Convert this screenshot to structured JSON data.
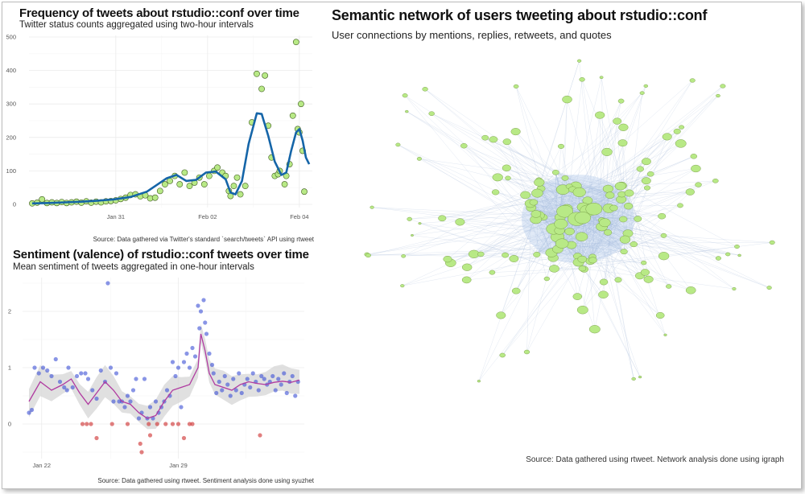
{
  "freq": {
    "title": "Frequency of tweets about rstudio::conf over time",
    "subtitle": "Twitter status counts aggregated using two-hour intervals",
    "caption": "Source: Data gathered via Twitter's standard `search/tweets` API using rtweet"
  },
  "sentiment": {
    "title": "Sentiment (valence) of rstudio::conf tweets over time",
    "subtitle": "Mean sentiment of tweets aggregated in one-hour intervals",
    "caption": "Source: Data gathered using rtweet. Sentiment analysis done using syuzhet"
  },
  "network": {
    "title": "Semantic network of users tweeting about rstudio::conf",
    "subtitle": "User connections by mentions, replies, retweets, and quotes",
    "caption": "Source: Data gathered using rtweet. Network analysis done using igraph"
  },
  "colors": {
    "freq_points": "#b8e986",
    "freq_line": "#1565a8",
    "sent_positive": "#3a4fd6",
    "sent_negative": "#d13a3a",
    "sent_line": "#b03aa0",
    "band": "#d6d6d6",
    "network_nodes": "#b8e986",
    "network_edges": "#9fb4d6"
  },
  "chart_data": [
    {
      "type": "scatter",
      "title": "Frequency of tweets about rstudio::conf over time",
      "subtitle": "Twitter status counts aggregated using two-hour intervals",
      "xlabel": "",
      "ylabel": "",
      "x_ticks": [
        "Jan 31",
        "Feb 02",
        "Feb 04"
      ],
      "y_ticks": [
        0,
        100,
        200,
        300,
        400,
        500
      ],
      "xlim": [
        0,
        8.3
      ],
      "ylim": [
        0,
        500
      ],
      "grid": true,
      "points": [
        [
          0.0,
          3
        ],
        [
          0.15,
          5
        ],
        [
          0.3,
          15
        ],
        [
          0.45,
          4
        ],
        [
          0.6,
          6
        ],
        [
          0.75,
          4
        ],
        [
          0.9,
          7
        ],
        [
          1.05,
          4
        ],
        [
          1.2,
          6
        ],
        [
          1.35,
          8
        ],
        [
          1.5,
          5
        ],
        [
          1.65,
          9
        ],
        [
          1.8,
          5
        ],
        [
          1.95,
          8
        ],
        [
          2.1,
          6
        ],
        [
          2.25,
          9
        ],
        [
          2.4,
          10
        ],
        [
          2.55,
          12
        ],
        [
          2.7,
          16
        ],
        [
          2.85,
          20
        ],
        [
          3.0,
          28
        ],
        [
          3.15,
          30
        ],
        [
          3.3,
          24
        ],
        [
          3.45,
          27
        ],
        [
          3.6,
          18
        ],
        [
          3.75,
          20
        ],
        [
          3.9,
          40
        ],
        [
          4.05,
          60
        ],
        [
          4.2,
          70
        ],
        [
          4.35,
          85
        ],
        [
          4.5,
          60
        ],
        [
          4.65,
          95
        ],
        [
          4.8,
          55
        ],
        [
          4.95,
          65
        ],
        [
          5.1,
          80
        ],
        [
          5.25,
          60
        ],
        [
          5.4,
          85
        ],
        [
          5.55,
          100
        ],
        [
          5.65,
          110
        ],
        [
          5.8,
          95
        ],
        [
          5.9,
          85
        ],
        [
          6.0,
          40
        ],
        [
          6.05,
          25
        ],
        [
          6.15,
          55
        ],
        [
          6.25,
          80
        ],
        [
          6.35,
          30
        ],
        [
          6.5,
          55
        ],
        [
          6.7,
          245
        ],
        [
          6.85,
          390
        ],
        [
          7.0,
          345
        ],
        [
          7.1,
          385
        ],
        [
          7.2,
          235
        ],
        [
          7.3,
          140
        ],
        [
          7.4,
          85
        ],
        [
          7.5,
          90
        ],
        [
          7.55,
          100
        ],
        [
          7.7,
          60
        ],
        [
          7.75,
          85
        ],
        [
          7.85,
          120
        ],
        [
          7.95,
          265
        ],
        [
          8.05,
          485
        ],
        [
          8.1,
          225
        ],
        [
          8.15,
          215
        ],
        [
          8.2,
          300
        ],
        [
          8.25,
          160
        ],
        [
          8.3,
          38
        ]
      ],
      "smooth": [
        [
          0.0,
          3
        ],
        [
          0.5,
          4
        ],
        [
          1.0,
          6
        ],
        [
          1.5,
          8
        ],
        [
          2.0,
          11
        ],
        [
          2.5,
          15
        ],
        [
          3.0,
          22
        ],
        [
          3.5,
          38
        ],
        [
          3.8,
          58
        ],
        [
          4.1,
          78
        ],
        [
          4.4,
          88
        ],
        [
          4.7,
          70
        ],
        [
          5.0,
          73
        ],
        [
          5.3,
          95
        ],
        [
          5.6,
          98
        ],
        [
          5.9,
          75
        ],
        [
          6.05,
          35
        ],
        [
          6.2,
          30
        ],
        [
          6.4,
          70
        ],
        [
          6.6,
          180
        ],
        [
          6.85,
          272
        ],
        [
          7.0,
          270
        ],
        [
          7.2,
          205
        ],
        [
          7.4,
          128
        ],
        [
          7.6,
          88
        ],
        [
          7.75,
          95
        ],
        [
          7.9,
          160
        ],
        [
          8.05,
          215
        ],
        [
          8.15,
          225
        ],
        [
          8.25,
          190
        ],
        [
          8.35,
          140
        ],
        [
          8.45,
          120
        ]
      ]
    },
    {
      "type": "scatter",
      "title": "Sentiment (valence) of rstudio::conf tweets over time",
      "subtitle": "Mean sentiment of tweets aggregated in one-hour intervals",
      "xlabel": "",
      "ylabel": "",
      "x_ticks": [
        "Jan 22",
        "Jan 29"
      ],
      "y_ticks": [
        0,
        1,
        2
      ],
      "xlim": [
        0,
        9.6
      ],
      "ylim": [
        -0.5,
        2.5
      ],
      "grid": true,
      "points": [
        [
          0.0,
          0.2
        ],
        [
          0.1,
          0.25
        ],
        [
          0.2,
          1.0
        ],
        [
          0.35,
          0.9
        ],
        [
          0.5,
          1.0
        ],
        [
          0.65,
          0.95
        ],
        [
          0.8,
          0.85
        ],
        [
          0.95,
          1.15
        ],
        [
          1.1,
          0.75
        ],
        [
          1.25,
          0.65
        ],
        [
          1.35,
          0.6
        ],
        [
          1.4,
          1.0
        ],
        [
          1.55,
          0.65
        ],
        [
          1.7,
          0.85
        ],
        [
          1.85,
          0.9
        ],
        [
          2.0,
          0.9
        ],
        [
          2.1,
          0.8
        ],
        [
          2.25,
          0.6
        ],
        [
          2.4,
          0.45
        ],
        [
          2.55,
          0.95
        ],
        [
          2.7,
          0.75
        ],
        [
          2.8,
          2.5
        ],
        [
          2.9,
          1.0
        ],
        [
          3.0,
          0.4
        ],
        [
          3.1,
          0.9
        ],
        [
          3.2,
          0.4
        ],
        [
          3.3,
          0.4
        ],
        [
          3.4,
          0.3
        ],
        [
          3.5,
          0.5
        ],
        [
          3.6,
          0.4
        ],
        [
          3.7,
          0.6
        ],
        [
          3.8,
          0.8
        ],
        [
          3.9,
          0.1
        ],
        [
          4.0,
          0.2
        ],
        [
          4.1,
          0.8
        ],
        [
          4.2,
          0.1
        ],
        [
          4.3,
          0.3
        ],
        [
          4.4,
          0.1
        ],
        [
          4.5,
          0.4
        ],
        [
          4.6,
          0.2
        ],
        [
          4.7,
          0.3
        ],
        [
          4.8,
          0.4
        ],
        [
          4.9,
          0.6
        ],
        [
          5.0,
          0.5
        ],
        [
          5.1,
          1.1
        ],
        [
          5.2,
          0.85
        ],
        [
          5.3,
          1.0
        ],
        [
          5.4,
          0.3
        ],
        [
          5.5,
          1.1
        ],
        [
          5.6,
          1.25
        ],
        [
          5.7,
          1.0
        ],
        [
          5.8,
          1.35
        ],
        [
          5.9,
          1.2
        ],
        [
          6.0,
          2.1
        ],
        [
          6.05,
          1.7
        ],
        [
          6.1,
          2.0
        ],
        [
          6.2,
          2.2
        ],
        [
          6.25,
          1.8
        ],
        [
          6.3,
          1.6
        ],
        [
          6.4,
          1.25
        ],
        [
          6.5,
          1.05
        ],
        [
          6.55,
          0.9
        ],
        [
          6.65,
          0.55
        ],
        [
          6.75,
          0.75
        ],
        [
          6.85,
          0.6
        ],
        [
          6.95,
          0.85
        ],
        [
          7.05,
          0.7
        ],
        [
          7.15,
          0.5
        ],
        [
          7.25,
          0.8
        ],
        [
          7.35,
          0.6
        ],
        [
          7.45,
          0.9
        ],
        [
          7.55,
          0.55
        ],
        [
          7.65,
          0.7
        ],
        [
          7.75,
          0.8
        ],
        [
          7.85,
          0.65
        ],
        [
          7.95,
          0.9
        ],
        [
          8.05,
          0.75
        ],
        [
          8.15,
          0.6
        ],
        [
          8.25,
          0.85
        ],
        [
          8.35,
          0.8
        ],
        [
          8.45,
          0.7
        ],
        [
          8.55,
          0.75
        ],
        [
          8.65,
          0.85
        ],
        [
          8.75,
          0.6
        ],
        [
          8.85,
          0.8
        ],
        [
          8.95,
          0.7
        ],
        [
          9.05,
          0.9
        ],
        [
          9.15,
          0.55
        ],
        [
          9.25,
          0.75
        ],
        [
          9.35,
          0.85
        ],
        [
          9.45,
          0.5
        ],
        [
          9.55,
          0.75
        ]
      ],
      "negative_points": [
        [
          1.9,
          0.0
        ],
        [
          2.05,
          0.0
        ],
        [
          2.2,
          0.0
        ],
        [
          2.4,
          -0.25
        ],
        [
          2.95,
          0.0
        ],
        [
          3.5,
          0.0
        ],
        [
          3.95,
          -0.35
        ],
        [
          4.0,
          -0.5
        ],
        [
          4.25,
          0.0
        ],
        [
          4.3,
          -0.2
        ],
        [
          4.55,
          0.0
        ],
        [
          4.85,
          0.0
        ],
        [
          5.1,
          0.0
        ],
        [
          5.3,
          0.0
        ],
        [
          5.5,
          -0.25
        ],
        [
          5.7,
          0.0
        ],
        [
          5.8,
          0.0
        ],
        [
          8.2,
          -0.2
        ]
      ],
      "smooth": [
        [
          0.0,
          0.4
        ],
        [
          0.4,
          0.75
        ],
        [
          0.8,
          0.6
        ],
        [
          1.2,
          0.7
        ],
        [
          1.5,
          0.8
        ],
        [
          1.8,
          0.55
        ],
        [
          2.1,
          0.35
        ],
        [
          2.4,
          0.55
        ],
        [
          2.7,
          0.75
        ],
        [
          3.0,
          0.6
        ],
        [
          3.3,
          0.4
        ],
        [
          3.6,
          0.35
        ],
        [
          3.9,
          0.2
        ],
        [
          4.2,
          0.1
        ],
        [
          4.5,
          0.15
        ],
        [
          4.8,
          0.4
        ],
        [
          5.1,
          0.6
        ],
        [
          5.4,
          0.65
        ],
        [
          5.7,
          0.7
        ],
        [
          6.0,
          1.0
        ],
        [
          6.1,
          1.6
        ],
        [
          6.25,
          1.3
        ],
        [
          6.4,
          0.9
        ],
        [
          6.6,
          0.7
        ],
        [
          6.9,
          0.65
        ],
        [
          7.2,
          0.6
        ],
        [
          7.5,
          0.7
        ],
        [
          7.8,
          0.75
        ],
        [
          8.1,
          0.72
        ],
        [
          8.4,
          0.7
        ],
        [
          8.7,
          0.74
        ],
        [
          9.0,
          0.76
        ],
        [
          9.3,
          0.74
        ],
        [
          9.6,
          0.78
        ]
      ],
      "band_halfwidth": 0.22
    },
    {
      "type": "scatter",
      "title": "Semantic network of users tweeting about rstudio::conf",
      "subtitle": "User connections by mentions, replies, retweets, and quotes",
      "nodes": 170,
      "edges": 1200
    }
  ]
}
